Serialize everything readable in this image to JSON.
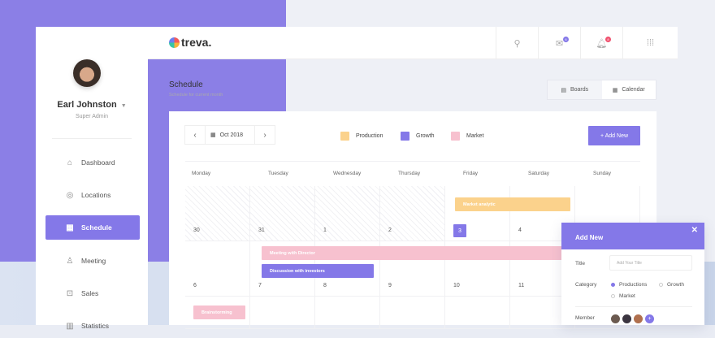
{
  "user": {
    "name": "Earl Johnston",
    "role": "Super Admin"
  },
  "sidebar": {
    "items": [
      {
        "label": "Dashboard",
        "icon": "home-icon"
      },
      {
        "label": "Locations",
        "icon": "location-pin-icon"
      },
      {
        "label": "Schedule",
        "icon": "calendar-icon",
        "active": true
      },
      {
        "label": "Meeting",
        "icon": "user-icon"
      },
      {
        "label": "Sales",
        "icon": "bag-icon"
      },
      {
        "label": "Statistics",
        "icon": "chart-icon"
      }
    ]
  },
  "topbar": {
    "brand": "treva.",
    "mail_badge": "6",
    "notif_badge": "8"
  },
  "page": {
    "title": "Schedule",
    "subtitle": "Schedule for current month"
  },
  "view_toggle": {
    "boards": "Boards",
    "calendar": "Calendar",
    "selected": "Calendar"
  },
  "calendar": {
    "month": "Oct 2018",
    "add_label": "+ Add New",
    "legend": [
      {
        "label": "Production",
        "color": "#fbd28c"
      },
      {
        "label": "Growth",
        "color": "#8478e8"
      },
      {
        "label": "Market",
        "color": "#f7c1cf"
      }
    ],
    "weekdays": [
      "Monday",
      "Tuesday",
      "Wednesday",
      "Thursday",
      "Friday",
      "Saturday",
      "Sunday"
    ],
    "weeks": [
      [
        "30",
        "31",
        "1",
        "2",
        "3",
        "4",
        ""
      ],
      [
        "6",
        "7",
        "8",
        "9",
        "10",
        "11",
        ""
      ]
    ],
    "today": "3",
    "events": [
      "Market analytic",
      "Meeting with Director",
      "Discussion with investors",
      "Brainstorming"
    ]
  },
  "modal": {
    "title": "Add New",
    "title_label": "Title",
    "title_placeholder": "Add Your Title",
    "category_label": "Category",
    "categories": [
      "Productions",
      "Growth",
      "Market"
    ],
    "selected_category": "Productions",
    "member_label": "Member",
    "add_member": "+"
  }
}
